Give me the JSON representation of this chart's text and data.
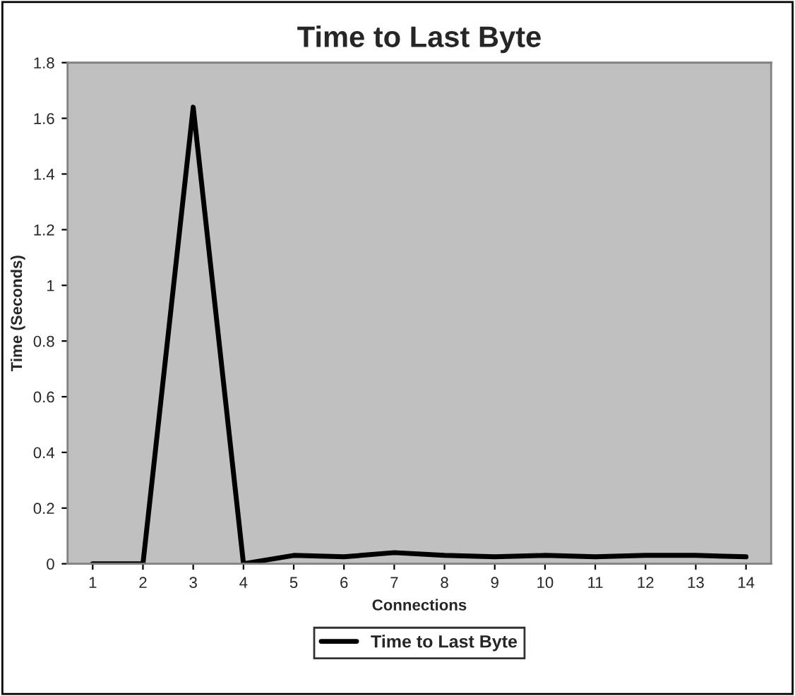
{
  "chart_data": {
    "type": "line",
    "title": "Time to Last Byte",
    "xlabel": "Connections",
    "ylabel": "Time (Seconds)",
    "categories": [
      "1",
      "2",
      "3",
      "4",
      "5",
      "6",
      "7",
      "8",
      "9",
      "10",
      "11",
      "12",
      "13",
      "14"
    ],
    "series": [
      {
        "name": "Time to Last Byte",
        "color": "#000000",
        "values": [
          0,
          0,
          1.64,
          0,
          0.03,
          0.025,
          0.04,
          0.03,
          0.025,
          0.03,
          0.025,
          0.03,
          0.03,
          0.025
        ]
      }
    ],
    "ylim": [
      0,
      1.8
    ],
    "yticks": [
      0,
      0.2,
      0.4,
      0.6,
      0.8,
      1,
      1.2,
      1.4,
      1.6,
      1.8
    ],
    "grid": false,
    "legend": "bottom",
    "marker": "none",
    "line_style": "solid"
  }
}
